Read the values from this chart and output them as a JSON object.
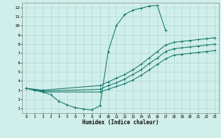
{
  "xlabel": "Humidex (Indice chaleur)",
  "bg_color": "#d0eeea",
  "grid_color": "#b0d8d4",
  "line_color": "#1a7a6e",
  "xlim": [
    -0.5,
    23.5
  ],
  "ylim": [
    0.5,
    12.5
  ],
  "xticks": [
    0,
    1,
    2,
    3,
    4,
    5,
    6,
    7,
    8,
    9,
    10,
    11,
    12,
    13,
    14,
    15,
    16,
    17,
    18,
    19,
    20,
    21,
    22,
    23
  ],
  "yticks": [
    1,
    2,
    3,
    4,
    5,
    6,
    7,
    8,
    9,
    10,
    11,
    12
  ],
  "series": [
    {
      "x": [
        0,
        1,
        2,
        3,
        4,
        5,
        6,
        7,
        8,
        9,
        10,
        11,
        12,
        13,
        14,
        15,
        16,
        17
      ],
      "y": [
        3.2,
        3.0,
        2.8,
        2.5,
        1.8,
        1.4,
        1.1,
        0.95,
        0.85,
        1.3,
        7.2,
        10.0,
        11.2,
        11.7,
        11.9,
        12.15,
        12.2,
        9.5
      ]
    },
    {
      "x": [
        0,
        2,
        9,
        10,
        11,
        12,
        13,
        14,
        15,
        16,
        17,
        18,
        19,
        20,
        21,
        22,
        23
      ],
      "y": [
        3.2,
        3.0,
        3.5,
        3.9,
        4.3,
        4.7,
        5.2,
        5.8,
        6.5,
        7.2,
        7.9,
        8.2,
        8.3,
        8.4,
        8.5,
        8.6,
        8.7
      ]
    },
    {
      "x": [
        0,
        2,
        9,
        10,
        11,
        12,
        13,
        14,
        15,
        16,
        17,
        18,
        19,
        20,
        21,
        22,
        23
      ],
      "y": [
        3.2,
        2.9,
        3.1,
        3.5,
        3.8,
        4.2,
        4.7,
        5.2,
        5.9,
        6.5,
        7.2,
        7.5,
        7.6,
        7.7,
        7.8,
        7.9,
        8.0
      ]
    },
    {
      "x": [
        0,
        2,
        9,
        10,
        11,
        12,
        13,
        14,
        15,
        16,
        17,
        18,
        19,
        20,
        21,
        22,
        23
      ],
      "y": [
        3.2,
        2.8,
        2.8,
        3.1,
        3.4,
        3.7,
        4.1,
        4.6,
        5.2,
        5.8,
        6.4,
        6.8,
        6.9,
        7.0,
        7.1,
        7.2,
        7.3
      ]
    }
  ]
}
